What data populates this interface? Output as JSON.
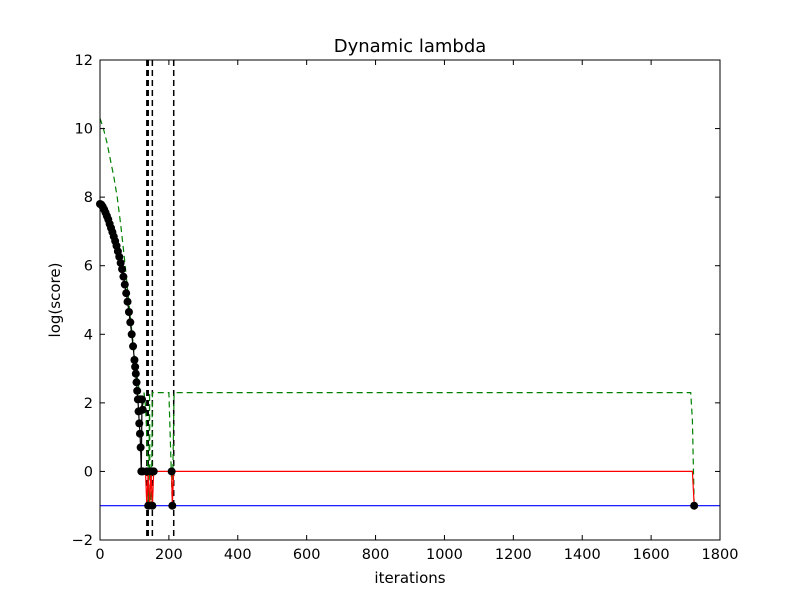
{
  "chart_data": {
    "type": "line",
    "title": "Dynamic lambda",
    "xlabel": "iterations",
    "ylabel": "log(score)",
    "xlim": [
      0,
      1800
    ],
    "ylim": [
      -2,
      12
    ],
    "xticks": [
      0,
      200,
      400,
      600,
      800,
      1000,
      1200,
      1400,
      1600,
      1800
    ],
    "yticks": [
      -2,
      0,
      2,
      4,
      6,
      8,
      10,
      12
    ],
    "xtick_labels": [
      "0",
      "200",
      "400",
      "600",
      "800",
      "1000",
      "1200",
      "1400",
      "1600",
      "1800"
    ],
    "ytick_labels": [
      "−2",
      "0",
      "2",
      "4",
      "6",
      "8",
      "10",
      "12"
    ],
    "grid": false,
    "colors": {
      "score": "#000000",
      "dashed_green": "#008000",
      "red": "#ff0000",
      "blue": "#0000ff",
      "vlines": "#000000"
    },
    "series": [
      {
        "style": "dashed",
        "color": "#008000",
        "x": [
          0,
          10,
          20,
          30,
          40,
          50,
          60,
          70,
          80,
          90,
          100,
          110,
          118,
          124,
          128,
          132,
          134,
          138,
          140,
          142,
          144,
          145,
          148,
          150,
          152,
          153,
          156,
          170,
          180,
          200,
          210,
          215,
          230,
          400,
          800,
          1200,
          1600,
          1715,
          1720,
          1725
        ],
        "y": [
          10.3,
          10.0,
          9.6,
          9.1,
          8.6,
          8.0,
          7.2,
          6.3,
          5.3,
          4.3,
          3.4,
          2.6,
          2.1,
          1.8,
          2.3,
          1.9,
          1.5,
          0.3,
          -1.0,
          0.0,
          2.3,
          0.0,
          -1.0,
          0.0,
          2.3,
          2.3,
          2.3,
          2.3,
          2.3,
          2.3,
          -1.0,
          2.3,
          2.3,
          2.3,
          2.3,
          2.3,
          2.3,
          2.3,
          1.5,
          -1.0
        ]
      },
      {
        "style": "solid",
        "color": "#ff0000",
        "x": [
          118,
          124,
          132,
          136,
          140,
          144,
          148,
          152,
          156,
          208,
          210,
          214,
          400,
          800,
          1200,
          1600,
          1720,
          1725
        ],
        "y": [
          0.0,
          0.0,
          0.0,
          -1.0,
          0.0,
          -1.0,
          0.0,
          -1.0,
          0.0,
          0.0,
          -1.0,
          0.0,
          0.0,
          0.0,
          0.0,
          0.0,
          0.0,
          -1.0
        ]
      },
      {
        "style": "solid",
        "color": "#0000ff",
        "x": [
          0,
          1800
        ],
        "y": [
          -1.0,
          -1.0
        ]
      }
    ],
    "score_points": {
      "x": [
        0,
        4,
        8,
        12,
        16,
        20,
        24,
        28,
        32,
        36,
        40,
        44,
        48,
        52,
        56,
        60,
        64,
        68,
        72,
        76,
        80,
        84,
        88,
        92,
        96,
        100,
        102,
        104,
        106,
        108,
        110,
        112,
        114,
        116,
        118,
        120,
        122,
        124
      ],
      "y": [
        7.8,
        7.78,
        7.72,
        7.64,
        7.55,
        7.45,
        7.35,
        7.22,
        7.1,
        6.98,
        6.85,
        6.72,
        6.58,
        6.42,
        6.26,
        6.08,
        5.9,
        5.68,
        5.45,
        5.2,
        4.95,
        4.65,
        4.35,
        4.0,
        3.65,
        3.25,
        3.05,
        2.85,
        2.6,
        2.35,
        2.1,
        1.75,
        1.4,
        1.1,
        0.7,
        0.0,
        2.1,
        1.8
      ],
      "extra_x": [
        124,
        136,
        140,
        148,
        152,
        156,
        208,
        210,
        1725
      ],
      "extra_y": [
        0.0,
        0.0,
        -1.0,
        0.0,
        -1.0,
        0.0,
        0.0,
        -1.0,
        -1.0
      ]
    },
    "vlines": [
      136,
      140,
      152,
      214
    ]
  }
}
